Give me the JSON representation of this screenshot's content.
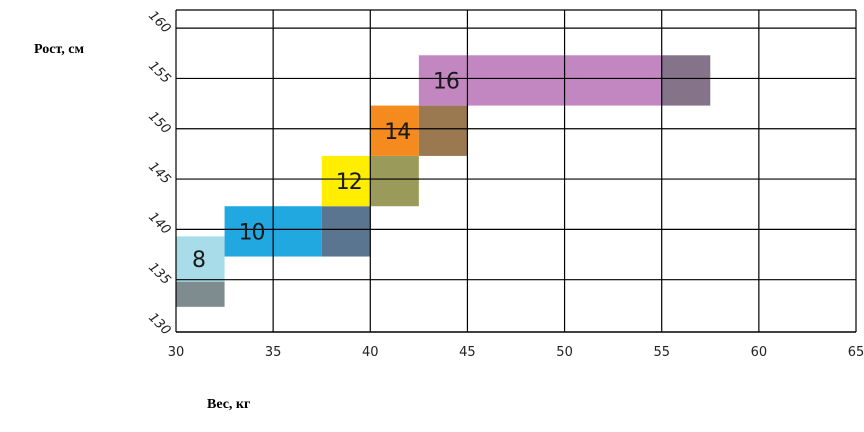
{
  "labels": {
    "ylabel": "Рост, см",
    "xlabel": "Вес, кг"
  },
  "chart_data": {
    "type": "heatmap",
    "title": "",
    "xlabel": "Вес, кг",
    "ylabel": "Рост, см",
    "xlim": [
      30,
      65
    ],
    "ylim": [
      130,
      162
    ],
    "x_ticks": [
      30,
      35,
      40,
      45,
      50,
      55,
      60,
      65
    ],
    "y_ticks": [
      130,
      135,
      140,
      145,
      150,
      155,
      160
    ],
    "grid": true,
    "size_zones": [
      {
        "label": "8",
        "height_range": [
          135,
          139.5
        ],
        "weight_main": [
          30,
          32.5
        ],
        "weight_extra": [
          30,
          32.5
        ],
        "extra_height_range": [
          132.5,
          135
        ],
        "color": "#a8dce8",
        "extra_color": "#7f8c8f"
      },
      {
        "label": "10",
        "height_range": [
          137.5,
          142.5
        ],
        "weight_main": [
          32.5,
          37.5
        ],
        "weight_extra": [
          37.5,
          40
        ],
        "color": "#22a8e0",
        "extra_color": "#5a7590"
      },
      {
        "label": "12",
        "height_range": [
          142.5,
          147.5
        ],
        "weight_main": [
          37.5,
          40
        ],
        "weight_extra": [
          40,
          42.5
        ],
        "color": "#ffee00",
        "extra_color": "#9a9a5a"
      },
      {
        "label": "14",
        "height_range": [
          147.5,
          152.5
        ],
        "weight_main": [
          40,
          42.5
        ],
        "weight_extra": [
          42.5,
          45
        ],
        "color": "#f58a1f",
        "extra_color": "#9a7850"
      },
      {
        "label": "16",
        "height_range": [
          152.5,
          157.5
        ],
        "weight_main": [
          42.5,
          55
        ],
        "weight_extra": [
          55,
          57.5
        ],
        "color": "#c287c0",
        "extra_color": "#85738a"
      }
    ]
  }
}
